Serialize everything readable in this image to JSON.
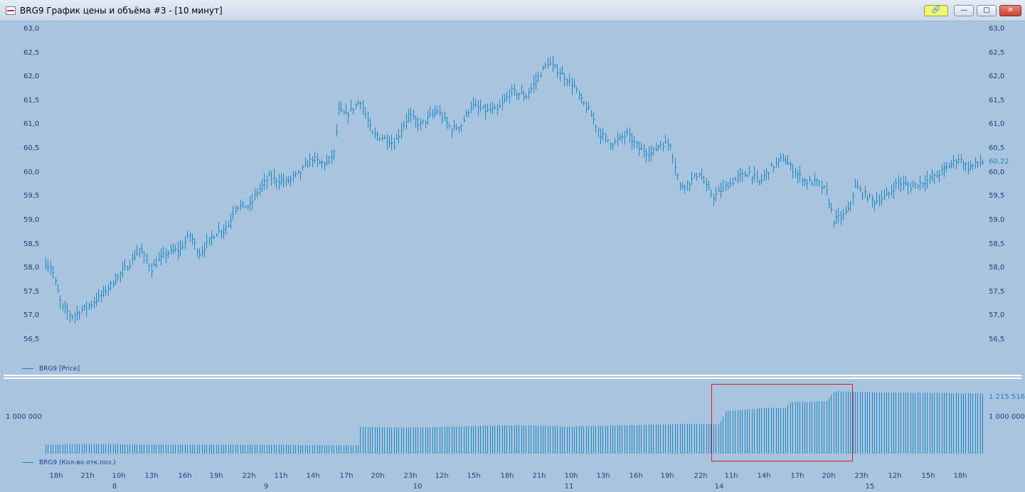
{
  "window": {
    "title": "BRG9 График цены и объёма #3 - [10 минут]",
    "buttons": {
      "link": "🔗",
      "minimize": "—",
      "maximize": "□",
      "close": "✕"
    }
  },
  "colors": {
    "background": "#a9c4de",
    "series": "#1f88c6",
    "axis_text": "#1f3f86",
    "highlight": "#d81e1e"
  },
  "price_legend": "BRG9 [Price]",
  "volume_legend": "BRG9 (Кол-во отк.поз.)",
  "price_axis_labels": [
    "63,0",
    "62,5",
    "62,0",
    "61,5",
    "61,0",
    "60,5",
    "60,0",
    "59,5",
    "59,0",
    "58,5",
    "58,0",
    "57,5",
    "57,0",
    "56,5"
  ],
  "last_price_label": "60,22",
  "volume_axis": {
    "left": "1 000 000",
    "right": "1 000 000",
    "max_label": "1 215 516"
  },
  "x_time_labels": [
    "18h",
    "21h",
    "10h",
    "13h",
    "16h",
    "19h",
    "22h",
    "11h",
    "14h",
    "17h",
    "20h",
    "23h",
    "12h",
    "15h",
    "18h",
    "21h",
    "10h",
    "13h",
    "16h",
    "19h",
    "22h",
    "11h",
    "14h",
    "17h",
    "20h",
    "23h",
    "12h",
    "15h",
    "18h"
  ],
  "x_date_labels": [
    "8",
    "9",
    "10",
    "11",
    "14",
    "15"
  ],
  "chart_data": [
    {
      "type": "bar",
      "name": "BRG9 [Price]",
      "ylim": [
        56.2,
        63.1
      ],
      "y_ticks": [
        63.0,
        62.5,
        62.0,
        61.5,
        61.0,
        60.5,
        60.0,
        59.5,
        59.0,
        58.5,
        58.0,
        57.5,
        57.0,
        56.5
      ],
      "anchors": [
        [
          0,
          58.1
        ],
        [
          5,
          58.0
        ],
        [
          13,
          57.2
        ],
        [
          22,
          57.0
        ],
        [
          35,
          57.2
        ],
        [
          45,
          57.4
        ],
        [
          56,
          57.7
        ],
        [
          70,
          58.1
        ],
        [
          78,
          58.4
        ],
        [
          88,
          58.0
        ],
        [
          100,
          58.3
        ],
        [
          112,
          58.4
        ],
        [
          120,
          58.7
        ],
        [
          128,
          58.3
        ],
        [
          140,
          58.7
        ],
        [
          152,
          58.9
        ],
        [
          158,
          59.3
        ],
        [
          170,
          59.3
        ],
        [
          176,
          59.6
        ],
        [
          186,
          59.9
        ],
        [
          200,
          59.8
        ],
        [
          212,
          60.0
        ],
        [
          222,
          60.3
        ],
        [
          228,
          60.2
        ],
        [
          234,
          60.2
        ],
        [
          240,
          60.4
        ],
        [
          244,
          61.3
        ],
        [
          250,
          61.2
        ],
        [
          262,
          61.5
        ],
        [
          272,
          60.8
        ],
        [
          284,
          60.7
        ],
        [
          290,
          60.6
        ],
        [
          296,
          60.9
        ],
        [
          302,
          61.2
        ],
        [
          312,
          61.0
        ],
        [
          326,
          61.3
        ],
        [
          338,
          60.9
        ],
        [
          346,
          61.0
        ],
        [
          354,
          61.4
        ],
        [
          366,
          61.3
        ],
        [
          376,
          61.3
        ],
        [
          388,
          61.7
        ],
        [
          400,
          61.6
        ],
        [
          410,
          62.0
        ],
        [
          418,
          62.3
        ],
        [
          428,
          62.1
        ],
        [
          440,
          61.8
        ],
        [
          446,
          61.5
        ],
        [
          452,
          61.3
        ],
        [
          462,
          60.8
        ],
        [
          472,
          60.6
        ],
        [
          484,
          60.8
        ],
        [
          494,
          60.5
        ],
        [
          504,
          60.4
        ],
        [
          512,
          60.6
        ],
        [
          520,
          60.6
        ],
        [
          528,
          59.7
        ],
        [
          536,
          59.8
        ],
        [
          544,
          60.0
        ],
        [
          550,
          59.7
        ],
        [
          556,
          59.5
        ],
        [
          566,
          59.7
        ],
        [
          576,
          59.9
        ],
        [
          586,
          60.0
        ],
        [
          594,
          59.8
        ],
        [
          604,
          60.1
        ],
        [
          614,
          60.3
        ],
        [
          624,
          60.0
        ],
        [
          634,
          59.8
        ],
        [
          642,
          59.8
        ],
        [
          650,
          59.6
        ],
        [
          656,
          59.0
        ],
        [
          664,
          59.1
        ],
        [
          668,
          59.2
        ],
        [
          674,
          59.7
        ],
        [
          684,
          59.5
        ],
        [
          690,
          59.4
        ],
        [
          700,
          59.5
        ],
        [
          710,
          59.8
        ],
        [
          720,
          59.7
        ],
        [
          730,
          59.8
        ],
        [
          740,
          59.9
        ],
        [
          750,
          60.1
        ],
        [
          760,
          60.3
        ],
        [
          768,
          60.1
        ],
        [
          776,
          60.2
        ],
        [
          780,
          60.22
        ]
      ]
    },
    {
      "type": "bar",
      "name": "BRG9 (Кол-во отк.поз.)",
      "ylim": [
        0,
        1240000
      ],
      "y_ticks": [
        1000000
      ],
      "max_value": 1215516,
      "anchors": [
        [
          0,
          175000
        ],
        [
          30,
          185000
        ],
        [
          110,
          175000
        ],
        [
          175,
          170000
        ],
        [
          260,
          160000
        ],
        [
          261,
          165000
        ],
        [
          262,
          520000
        ],
        [
          300,
          505000
        ],
        [
          340,
          525000
        ],
        [
          382,
          550000
        ],
        [
          420,
          540000
        ],
        [
          430,
          520000
        ],
        [
          480,
          550000
        ],
        [
          540,
          580000
        ],
        [
          560,
          570000
        ],
        [
          561,
          575000
        ],
        [
          566,
          820000
        ],
        [
          600,
          890000
        ],
        [
          616,
          880000
        ],
        [
          620,
          1000000
        ],
        [
          650,
          1020000
        ],
        [
          657,
          1215516
        ],
        [
          678,
          1200000
        ],
        [
          700,
          1185000
        ],
        [
          780,
          1170000
        ]
      ]
    }
  ]
}
